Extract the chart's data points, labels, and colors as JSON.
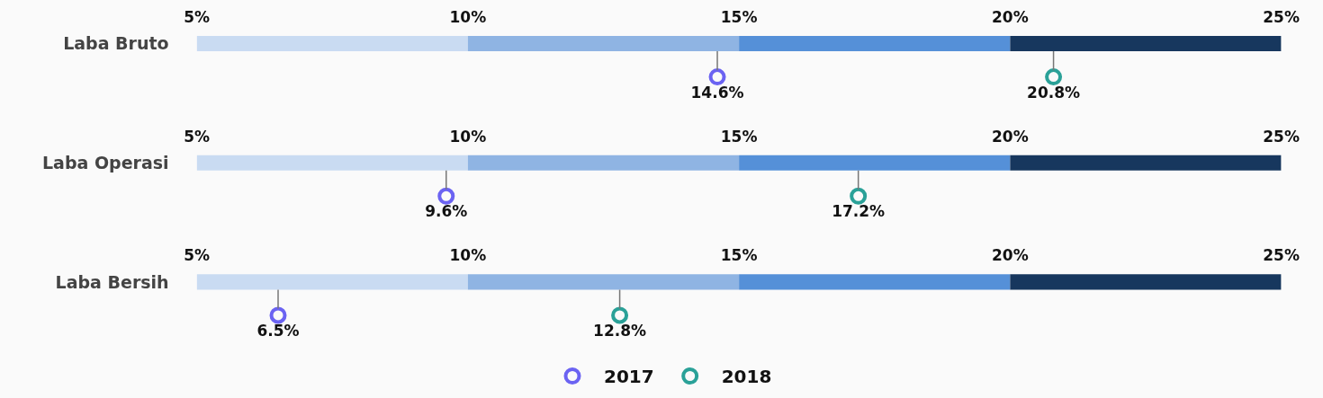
{
  "chart_data": [
    {
      "type": "scatter",
      "orientation": "horizontal",
      "categories": [
        "Laba Bruto"
      ],
      "xlim": [
        5,
        25
      ],
      "xticks": [
        {
          "value": 5,
          "label": "5%"
        },
        {
          "value": 10,
          "label": "10%"
        },
        {
          "value": 15,
          "label": "15%"
        },
        {
          "value": 20,
          "label": "20%"
        },
        {
          "value": 25,
          "label": "25%"
        }
      ],
      "marker": "circle",
      "bands": [
        {
          "axis": "x",
          "from": 5,
          "to": 10,
          "color": "#c9dbf2"
        },
        {
          "axis": "x",
          "from": 10,
          "to": 15,
          "color": "#8fb4e3"
        },
        {
          "axis": "x",
          "from": 15,
          "to": 20,
          "color": "#5590d8"
        },
        {
          "axis": "x",
          "from": 20,
          "to": 25,
          "color": "#17375e"
        }
      ],
      "series": [
        {
          "color": "#6b63f2",
          "values": [
            14.6
          ],
          "value_labels": [
            "14.6%"
          ]
        },
        {
          "color": "#2aa198",
          "values": [
            20.8
          ],
          "value_labels": [
            "20.8%"
          ]
        }
      ]
    },
    {
      "type": "scatter",
      "orientation": "horizontal",
      "categories": [
        "Laba Operasi"
      ],
      "xlim": [
        5,
        25
      ],
      "xticks": [
        {
          "value": 5,
          "label": "5%"
        },
        {
          "value": 10,
          "label": "10%"
        },
        {
          "value": 15,
          "label": "15%"
        },
        {
          "value": 20,
          "label": "20%"
        },
        {
          "value": 25,
          "label": "25%"
        }
      ],
      "marker": "circle",
      "bands": [
        {
          "axis": "x",
          "from": 5,
          "to": 10,
          "color": "#c9dbf2"
        },
        {
          "axis": "x",
          "from": 10,
          "to": 15,
          "color": "#8fb4e3"
        },
        {
          "axis": "x",
          "from": 15,
          "to": 20,
          "color": "#5590d8"
        },
        {
          "axis": "x",
          "from": 20,
          "to": 25,
          "color": "#17375e"
        }
      ],
      "series": [
        {
          "color": "#6b63f2",
          "values": [
            9.6
          ],
          "value_labels": [
            "9.6%"
          ]
        },
        {
          "color": "#2aa198",
          "values": [
            17.2
          ],
          "value_labels": [
            "17.2%"
          ]
        }
      ]
    },
    {
      "type": "scatter",
      "orientation": "horizontal",
      "categories": [
        "Laba Bersih"
      ],
      "xlim": [
        5,
        25
      ],
      "xticks": [
        {
          "value": 5,
          "label": "5%"
        },
        {
          "value": 10,
          "label": "10%"
        },
        {
          "value": 15,
          "label": "15%"
        },
        {
          "value": 20,
          "label": "20%"
        },
        {
          "value": 25,
          "label": "25%"
        }
      ],
      "marker": "circle",
      "legend": "bottom",
      "bands": [
        {
          "axis": "x",
          "from": 5,
          "to": 10,
          "color": "#c9dbf2"
        },
        {
          "axis": "x",
          "from": 10,
          "to": 15,
          "color": "#8fb4e3"
        },
        {
          "axis": "x",
          "from": 15,
          "to": 20,
          "color": "#5590d8"
        },
        {
          "axis": "x",
          "from": 20,
          "to": 25,
          "color": "#17375e"
        }
      ],
      "series": [
        {
          "name": "2017",
          "color": "#6b63f2",
          "values": [
            6.5
          ],
          "value_labels": [
            "6.5%"
          ]
        },
        {
          "name": "2018",
          "color": "#2aa198",
          "values": [
            12.8
          ],
          "value_labels": [
            "12.8%"
          ]
        }
      ]
    }
  ]
}
